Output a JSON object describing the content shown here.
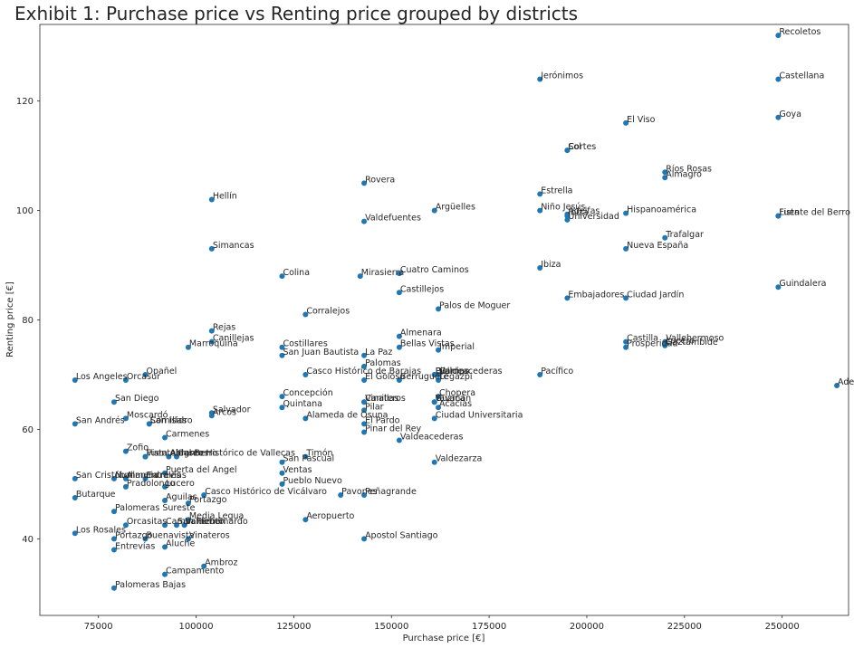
{
  "chart_data": {
    "type": "scatter",
    "title": "Exhibit 1: Purchase price vs Renting price grouped by districts",
    "xlabel": "Purchase price [€]",
    "ylabel": "Renting price [€]",
    "xlim": [
      60000,
      267000
    ],
    "ylim": [
      26,
      134
    ],
    "x_ticks": [
      75000,
      100000,
      125000,
      150000,
      175000,
      200000,
      225000,
      250000
    ],
    "x_tick_labels": [
      "75000",
      "100000",
      "125000",
      "150000",
      "175000",
      "200000",
      "225000",
      "250000"
    ],
    "y_ticks": [
      40,
      60,
      80,
      100,
      120
    ],
    "y_tick_labels": [
      "40",
      "60",
      "80",
      "100",
      "120"
    ],
    "grid": false,
    "marker_color": "#1f77b4",
    "points": [
      {
        "label": "Recoletos",
        "x": 249000,
        "y": 132
      },
      {
        "label": "Jerónimos",
        "x": 188000,
        "y": 124
      },
      {
        "label": "Castellana",
        "x": 249000,
        "y": 124
      },
      {
        "label": "Goya",
        "x": 249000,
        "y": 117
      },
      {
        "label": "El Viso",
        "x": 210000,
        "y": 116
      },
      {
        "label": "Sol",
        "x": 195000,
        "y": 111
      },
      {
        "label": "Cortes",
        "x": 195000,
        "y": 111
      },
      {
        "label": "Ríos Rosas",
        "x": 220000,
        "y": 107
      },
      {
        "label": "Almagro",
        "x": 220000,
        "y": 106
      },
      {
        "label": "Rovera",
        "x": 143000,
        "y": 105
      },
      {
        "label": "Estrella",
        "x": 188000,
        "y": 103
      },
      {
        "label": "Hellín",
        "x": 104000,
        "y": 102
      },
      {
        "label": "Argüelles",
        "x": 161000,
        "y": 100
      },
      {
        "label": "Niño Jesús",
        "x": 188000,
        "y": 100
      },
      {
        "label": "Hispanoamérica",
        "x": 210000,
        "y": 99.5
      },
      {
        "label": "Lista",
        "x": 249000,
        "y": 99
      },
      {
        "label": "Fuente del Berro",
        "x": 249000,
        "y": 99
      },
      {
        "label": "Adelfas",
        "x": 195000,
        "y": 99.3
      },
      {
        "label": "Ibiza",
        "x": 195000,
        "y": 99
      },
      {
        "label": "Universidad",
        "x": 195000,
        "y": 98.3
      },
      {
        "label": "Valdefuentes",
        "x": 143000,
        "y": 98
      },
      {
        "label": "Trafalgar",
        "x": 220000,
        "y": 95
      },
      {
        "label": "Simancas",
        "x": 104000,
        "y": 93
      },
      {
        "label": "Nueva España",
        "x": 210000,
        "y": 93
      },
      {
        "label": "Ibiza",
        "x": 188000,
        "y": 89.5
      },
      {
        "label": "Colina",
        "x": 122000,
        "y": 88
      },
      {
        "label": "Mirasierra",
        "x": 142000,
        "y": 88
      },
      {
        "label": "Cuatro Caminos",
        "x": 152000,
        "y": 88.5
      },
      {
        "label": "Guindalera",
        "x": 249000,
        "y": 86
      },
      {
        "label": "Castillejos",
        "x": 152000,
        "y": 85
      },
      {
        "label": "Embajadores",
        "x": 195000,
        "y": 84
      },
      {
        "label": "Ciudad Jardín",
        "x": 210000,
        "y": 84
      },
      {
        "label": "Palos de Moguer",
        "x": 162000,
        "y": 82
      },
      {
        "label": "Corralejos",
        "x": 128000,
        "y": 81
      },
      {
        "label": "Rejas",
        "x": 104000,
        "y": 78
      },
      {
        "label": "Almenara",
        "x": 152000,
        "y": 77
      },
      {
        "label": "Canillejas",
        "x": 104000,
        "y": 76
      },
      {
        "label": "Castilla",
        "x": 210000,
        "y": 76
      },
      {
        "label": "Vallehermoso",
        "x": 220000,
        "y": 76
      },
      {
        "label": "Lucero",
        "x": 220000,
        "y": 75.5
      },
      {
        "label": "Gaztambide",
        "x": 220000,
        "y": 75.3
      },
      {
        "label": "Marroquina",
        "x": 98000,
        "y": 75
      },
      {
        "label": "Costillares",
        "x": 122000,
        "y": 75
      },
      {
        "label": "Bellas Vistas",
        "x": 152000,
        "y": 75
      },
      {
        "label": "Prosperidad",
        "x": 210000,
        "y": 75
      },
      {
        "label": "Imperial",
        "x": 162000,
        "y": 74.5
      },
      {
        "label": "San Juan Bautista",
        "x": 122000,
        "y": 73.5
      },
      {
        "label": "La Paz",
        "x": 143000,
        "y": 73.5
      },
      {
        "label": "Palomas",
        "x": 143000,
        "y": 71.5
      },
      {
        "label": "Opañel",
        "x": 87000,
        "y": 70
      },
      {
        "label": "Casco Histórico de Barajas",
        "x": 128000,
        "y": 70
      },
      {
        "label": "Delicias",
        "x": 161000,
        "y": 70
      },
      {
        "label": "Pilar",
        "x": 161000,
        "y": 70
      },
      {
        "label": "Valdeacederas",
        "x": 162000,
        "y": 70
      },
      {
        "label": "Campo",
        "x": 162000,
        "y": 70
      },
      {
        "label": "Pacífico",
        "x": 188000,
        "y": 70
      },
      {
        "label": "Los Angeles",
        "x": 69000,
        "y": 69
      },
      {
        "label": "Orcasur",
        "x": 82000,
        "y": 69
      },
      {
        "label": "El Goloso",
        "x": 143000,
        "y": 69
      },
      {
        "label": "Berruguete",
        "x": 152000,
        "y": 69
      },
      {
        "label": "Legazpi",
        "x": 162000,
        "y": 69
      },
      {
        "label": "Adelfas",
        "x": 264000,
        "y": 68
      },
      {
        "label": "Concepción",
        "x": 122000,
        "y": 66
      },
      {
        "label": "Chopera",
        "x": 162000,
        "y": 66
      },
      {
        "label": "Vinateros",
        "x": 143000,
        "y": 65
      },
      {
        "label": "Canillas",
        "x": 143000,
        "y": 65
      },
      {
        "label": "Guzmán",
        "x": 161000,
        "y": 65
      },
      {
        "label": "Yavaca",
        "x": 161000,
        "y": 65
      },
      {
        "label": "San Diego",
        "x": 79000,
        "y": 65
      },
      {
        "label": "Quintana",
        "x": 122000,
        "y": 64
      },
      {
        "label": "Acacias",
        "x": 162000,
        "y": 64
      },
      {
        "label": "Pilar",
        "x": 143000,
        "y": 63.5
      },
      {
        "label": "Salvador",
        "x": 104000,
        "y": 63
      },
      {
        "label": "Arcos",
        "x": 104000,
        "y": 62.5
      },
      {
        "label": "Moscardó",
        "x": 82000,
        "y": 62
      },
      {
        "label": "Alameda de Osuna",
        "x": 128000,
        "y": 62
      },
      {
        "label": "Ciudad Universitaria",
        "x": 161000,
        "y": 62
      },
      {
        "label": "San Andrés",
        "x": 69000,
        "y": 61
      },
      {
        "label": "San Isidro",
        "x": 88000,
        "y": 61
      },
      {
        "label": "Comillas",
        "x": 88000,
        "y": 61
      },
      {
        "label": "El Pardo",
        "x": 143000,
        "y": 61
      },
      {
        "label": "Pinar del Rey",
        "x": 143000,
        "y": 59.5
      },
      {
        "label": "Carmenes",
        "x": 92000,
        "y": 58.5
      },
      {
        "label": "Valdeacederas",
        "x": 152000,
        "y": 58
      },
      {
        "label": "Zofio",
        "x": 82000,
        "y": 56
      },
      {
        "label": "Fuente del Berro",
        "x": 87000,
        "y": 55
      },
      {
        "label": "Vista Alegre",
        "x": 87000,
        "y": 55
      },
      {
        "label": "Abrantes",
        "x": 93000,
        "y": 55
      },
      {
        "label": "Casco Histórico de Vallecas",
        "x": 95000,
        "y": 55
      },
      {
        "label": "Timón",
        "x": 128000,
        "y": 55
      },
      {
        "label": "San Pascual",
        "x": 122000,
        "y": 54
      },
      {
        "label": "Valdezarza",
        "x": 161000,
        "y": 54
      },
      {
        "label": "Puerta del Angel",
        "x": 92000,
        "y": 52
      },
      {
        "label": "Ventas",
        "x": 122000,
        "y": 52
      },
      {
        "label": "San Cristóbal",
        "x": 69000,
        "y": 51
      },
      {
        "label": "Numancia",
        "x": 79000,
        "y": 51
      },
      {
        "label": "Almendrales",
        "x": 82000,
        "y": 51
      },
      {
        "label": "Entrevías",
        "x": 87000,
        "y": 51
      },
      {
        "label": "Pradolongo",
        "x": 82000,
        "y": 49.5
      },
      {
        "label": "Lucero",
        "x": 92000,
        "y": 49.5
      },
      {
        "label": "Pueblo Nuevo",
        "x": 122000,
        "y": 50
      },
      {
        "label": "Casco Histórico de Vicálvaro",
        "x": 102000,
        "y": 48
      },
      {
        "label": "Pavones",
        "x": 137000,
        "y": 48
      },
      {
        "label": "Peñagrande",
        "x": 143000,
        "y": 48
      },
      {
        "label": "Butarque",
        "x": 69000,
        "y": 47.5
      },
      {
        "label": "Aguilas",
        "x": 92000,
        "y": 47
      },
      {
        "label": "Portazgo",
        "x": 98000,
        "y": 46.5
      },
      {
        "label": "Palomeras Sureste",
        "x": 79000,
        "y": 45
      },
      {
        "label": "Media Legua",
        "x": 98000,
        "y": 43.5
      },
      {
        "label": "Aeropuerto",
        "x": 128000,
        "y": 43.5
      },
      {
        "label": "Orcasitas",
        "x": 82000,
        "y": 42.5
      },
      {
        "label": "Campamento",
        "x": 92000,
        "y": 42.5
      },
      {
        "label": "San Fermín",
        "x": 95000,
        "y": 42.5
      },
      {
        "label": "Valdebernardo",
        "x": 97000,
        "y": 42.5
      },
      {
        "label": "Los Rosales",
        "x": 69000,
        "y": 41
      },
      {
        "label": "Portazgo",
        "x": 79000,
        "y": 40
      },
      {
        "label": "Buenavista",
        "x": 87000,
        "y": 40
      },
      {
        "label": "Vinateros",
        "x": 98000,
        "y": 40
      },
      {
        "label": "Apostol Santiago",
        "x": 143000,
        "y": 40
      },
      {
        "label": "Entrevías",
        "x": 79000,
        "y": 38
      },
      {
        "label": "Aluche",
        "x": 92000,
        "y": 38.5
      },
      {
        "label": "Ambroz",
        "x": 102000,
        "y": 35
      },
      {
        "label": "Campamento",
        "x": 92000,
        "y": 33.5
      },
      {
        "label": "Palomeras Bajas",
        "x": 79000,
        "y": 31
      }
    ]
  }
}
